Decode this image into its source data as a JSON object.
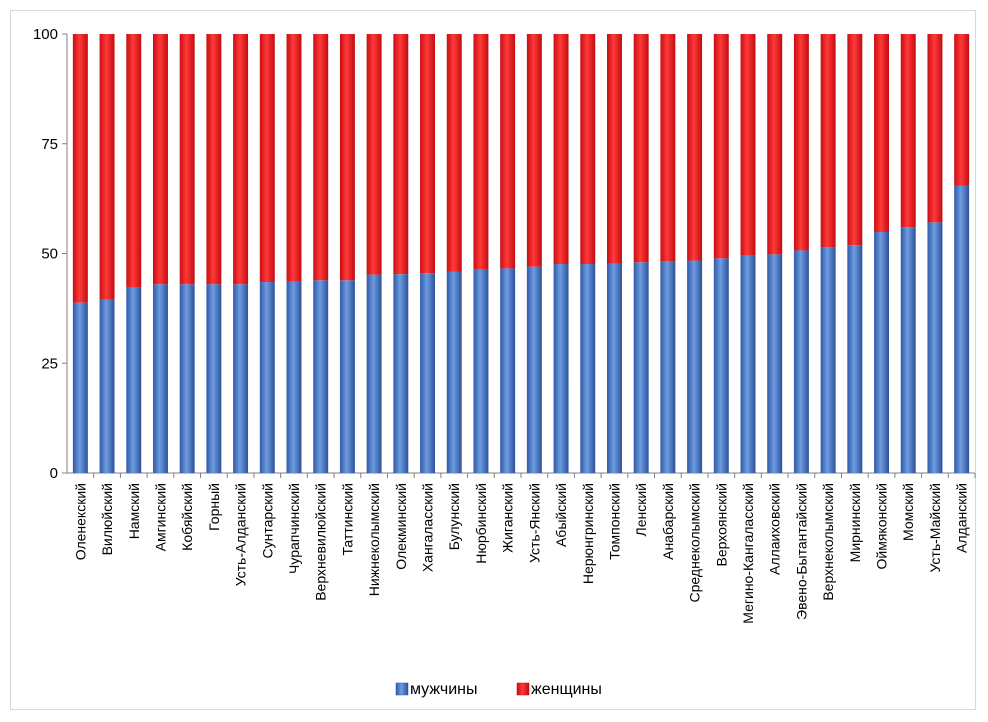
{
  "chart_data": {
    "type": "bar",
    "stacked": true,
    "categories": [
      "Оленекский",
      "Вилюйский",
      "Намский",
      "Амгинский",
      "Кобяйский",
      "Горный",
      "Усть-Алданский",
      "Сунтарский",
      "Чурапчинский",
      "Верхневилюйский",
      "Таттинский",
      "Нижнеколымский",
      "Олекминский",
      "Хангаласский",
      "Булунский",
      "Нюрбинский",
      "Жиганский",
      "Усть-Янский",
      "Абыйский",
      "Нерюнгринский",
      "Томпонский",
      "Ленский",
      "Анабарский",
      "Среднеколымский",
      "Верхоянский",
      "Мегино-Кангаласский",
      "Аллаиховский",
      "Эвено-Бытантайский",
      "Верхнеколымский",
      "Мирнинский",
      "Оймяконский",
      "Момский",
      "Усть-Майский",
      "Алданский"
    ],
    "series": [
      {
        "name": "мужчины",
        "color": "#3f6fc2",
        "values": [
          38.8,
          39.5,
          42.2,
          43.0,
          43.0,
          43.0,
          43.0,
          43.5,
          43.6,
          43.9,
          43.9,
          45.2,
          45.3,
          45.5,
          45.9,
          46.3,
          46.6,
          47.0,
          47.6,
          47.6,
          47.7,
          48.0,
          48.2,
          48.4,
          48.9,
          49.5,
          49.8,
          50.7,
          51.4,
          51.9,
          54.9,
          56.0,
          57.1,
          65.4
        ]
      },
      {
        "name": "женщины",
        "color": "#e8141b",
        "values": [
          61.2,
          60.5,
          57.8,
          57.0,
          57.0,
          57.0,
          57.0,
          56.5,
          56.4,
          56.1,
          56.1,
          54.8,
          54.7,
          54.5,
          54.1,
          53.7,
          53.4,
          53.0,
          52.4,
          52.4,
          52.3,
          52.0,
          51.8,
          51.6,
          51.1,
          50.5,
          50.2,
          49.3,
          48.6,
          48.1,
          45.1,
          44.0,
          42.9,
          34.6
        ]
      }
    ],
    "yticks": [
      "0",
      "25",
      "50",
      "75",
      "100"
    ],
    "ylim": [
      0,
      100
    ],
    "grid": false,
    "legend_position": "bottom"
  }
}
